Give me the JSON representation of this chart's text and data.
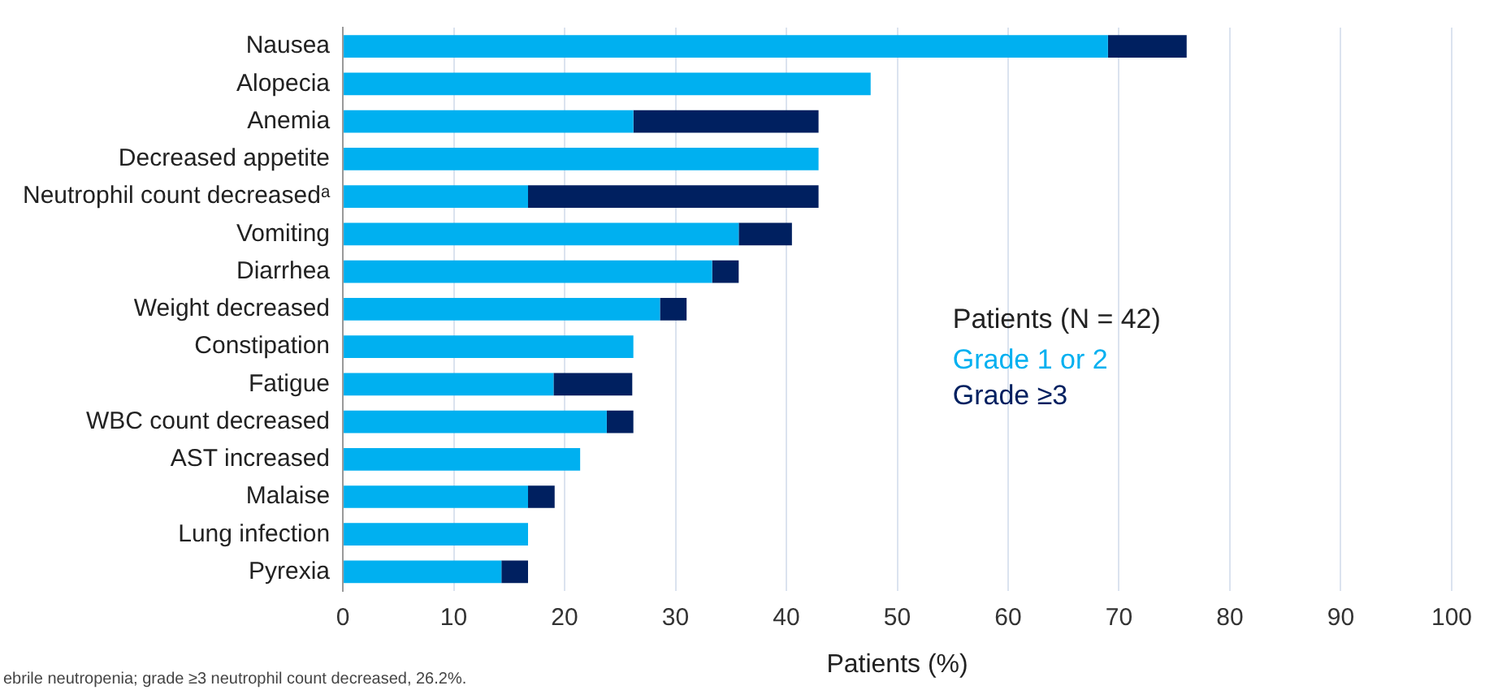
{
  "chart_data": {
    "type": "bar",
    "orientation": "horizontal",
    "stacked": true,
    "categories": [
      "Nausea",
      "Alopecia",
      "Anemia",
      "Decreased appetite",
      "Neutrophil count decreasedᵃ",
      "Vomiting",
      "Diarrhea",
      "Weight decreased",
      "Constipation",
      "Fatigue",
      "WBC count decreased",
      "AST increased",
      "Malaise",
      "Lung infection",
      "Pyrexia"
    ],
    "series": [
      {
        "name": "Grade 1 or 2",
        "color": "#00b0f0",
        "values": [
          69.0,
          47.6,
          26.2,
          42.9,
          16.7,
          35.7,
          33.3,
          28.6,
          26.2,
          19.0,
          23.8,
          21.4,
          16.7,
          16.7,
          14.3
        ]
      },
      {
        "name": "Grade ≥3",
        "color": "#002060",
        "values": [
          7.1,
          0,
          16.7,
          0,
          26.2,
          4.8,
          2.4,
          2.4,
          0,
          7.1,
          2.4,
          0,
          2.4,
          0,
          2.4
        ]
      }
    ],
    "xlabel": "Patients (%)",
    "xlim": [
      0,
      100
    ],
    "xticks": [
      0,
      10,
      20,
      30,
      40,
      50,
      60,
      70,
      80,
      90,
      100
    ],
    "grid": "x",
    "legend": "right",
    "legend_title": "Patients (N = 42)",
    "annotations": [
      "ebrile neutropenia; grade ≥3 neutrophil count decreased, 26.2%."
    ]
  }
}
